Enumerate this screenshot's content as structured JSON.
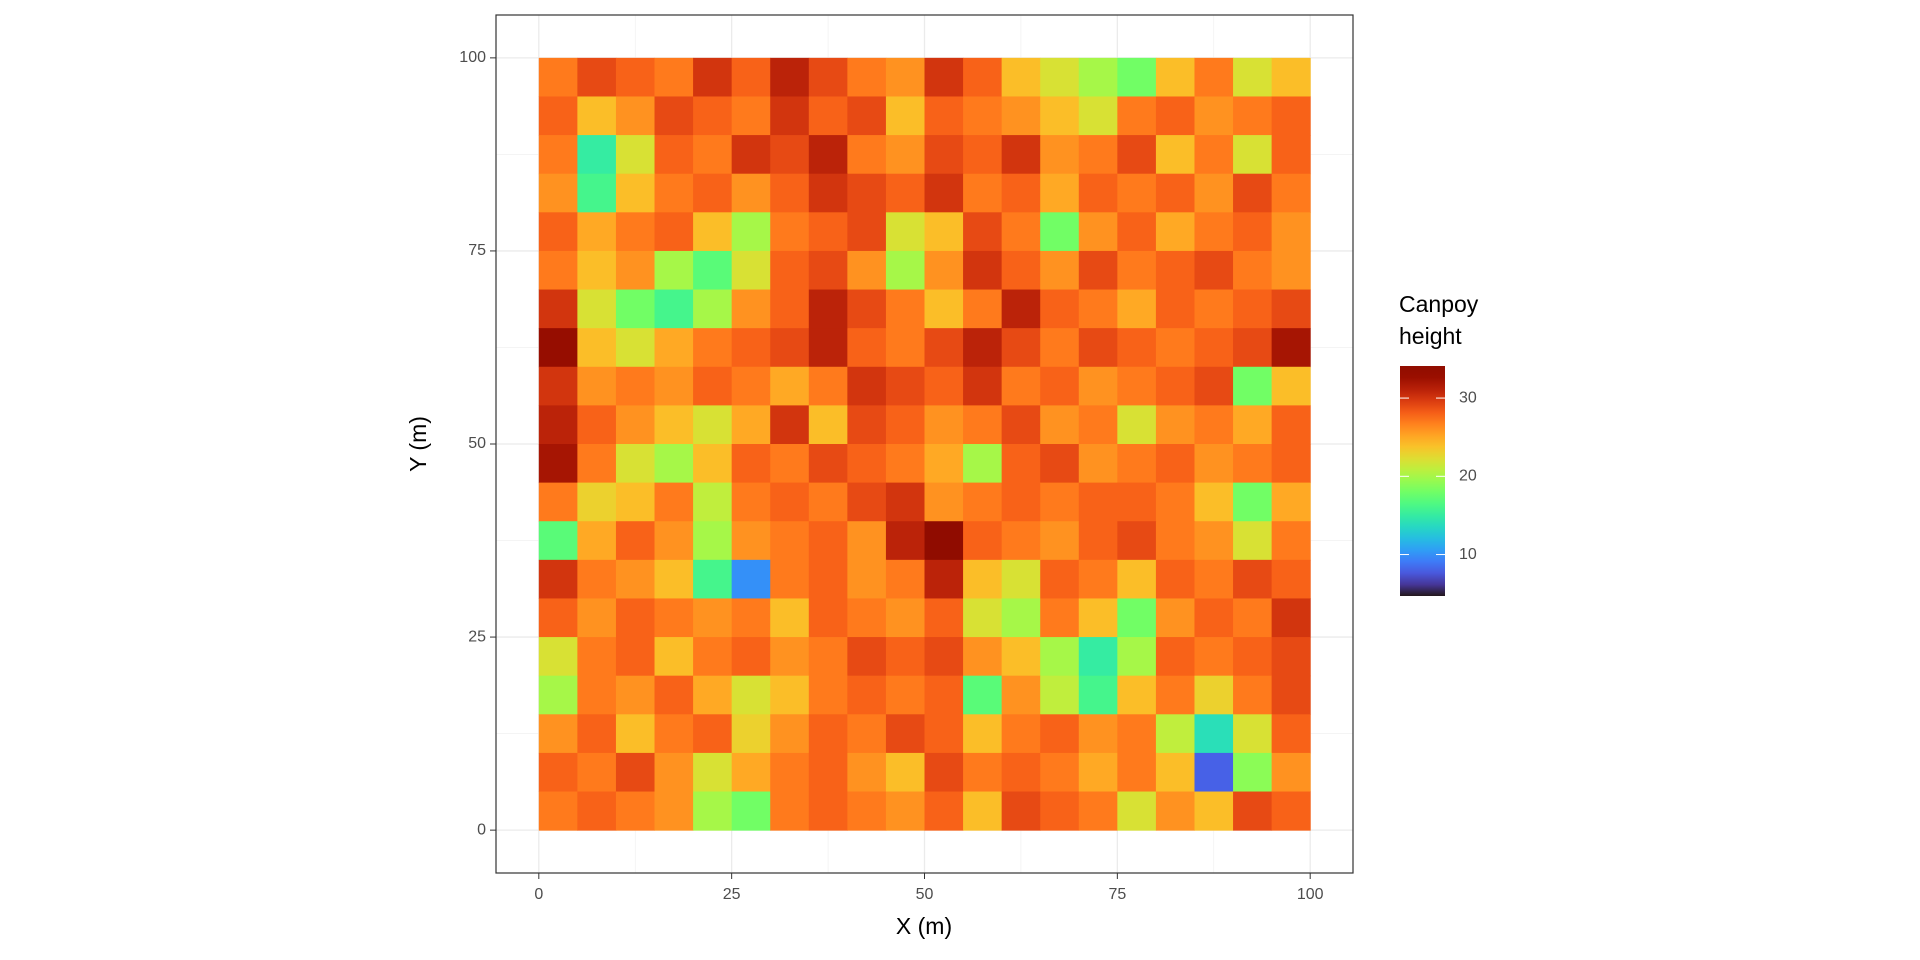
{
  "chart_data": {
    "type": "heatmap",
    "x_label": "X (m)",
    "y_label": "Y (m)",
    "legend_title": "Canpoy\nheight",
    "colormap": "turbo",
    "zlim": [
      4.7,
      34.1
    ],
    "legend_ticks": [
      10,
      20,
      30
    ],
    "xlim": [
      -5.55,
      105.55
    ],
    "ylim": [
      -5.55,
      105.55
    ],
    "xticks": [
      0,
      25,
      50,
      75,
      100
    ],
    "yticks": [
      0,
      25,
      50,
      75,
      100
    ],
    "grid": true,
    "x": [
      2.5,
      7.5,
      12.5,
      17.5,
      22.5,
      27.5,
      32.5,
      37.5,
      42.5,
      47.5,
      52.5,
      57.5,
      62.5,
      67.5,
      72.5,
      77.5,
      82.5,
      87.5,
      92.5,
      97.5
    ],
    "y": [
      97.5,
      92.5,
      87.5,
      82.5,
      77.5,
      72.5,
      67.5,
      62.5,
      57.5,
      52.5,
      47.5,
      42.5,
      37.5,
      32.5,
      27.5,
      22.5,
      17.5,
      12.5,
      7.5,
      2.5
    ],
    "z": [
      [
        27,
        29,
        28,
        27,
        30,
        28,
        31,
        29,
        27,
        26,
        30,
        28,
        24,
        22,
        20,
        18,
        24,
        27,
        22,
        24
      ],
      [
        28,
        24,
        26,
        29,
        28,
        27,
        30,
        28,
        29,
        24,
        28,
        27,
        26,
        24,
        22,
        27,
        28,
        26,
        27,
        28
      ],
      [
        27,
        15,
        22,
        28,
        27,
        30,
        29,
        31,
        27,
        26,
        29,
        28,
        30,
        26,
        27,
        29,
        24,
        27,
        22,
        28
      ],
      [
        26,
        16,
        24,
        27,
        28,
        26,
        28,
        30,
        29,
        28,
        30,
        27,
        28,
        25,
        28,
        27,
        28,
        26,
        29,
        27
      ],
      [
        28,
        25,
        27,
        28,
        24,
        20,
        27,
        28,
        29,
        22,
        24,
        29,
        27,
        18,
        26,
        28,
        25,
        27,
        28,
        26
      ],
      [
        27,
        24,
        26,
        20,
        17,
        22,
        28,
        29,
        26,
        20,
        26,
        30,
        28,
        26,
        29,
        27,
        28,
        29,
        27,
        26
      ],
      [
        30,
        22,
        18,
        16,
        20,
        26,
        28,
        31,
        29,
        27,
        24,
        27,
        31,
        28,
        27,
        25,
        28,
        27,
        28,
        29
      ],
      [
        33,
        24,
        22,
        25,
        27,
        28,
        29,
        31,
        28,
        27,
        29,
        31,
        29,
        27,
        29,
        28,
        27,
        28,
        29,
        32
      ],
      [
        30,
        26,
        27,
        26,
        28,
        27,
        25,
        27,
        30,
        29,
        28,
        30,
        27,
        28,
        26,
        27,
        28,
        29,
        18,
        24
      ],
      [
        31,
        28,
        26,
        24,
        22,
        25,
        30,
        24,
        29,
        28,
        26,
        27,
        29,
        26,
        27,
        22,
        26,
        27,
        25,
        28
      ],
      [
        32,
        27,
        22,
        20,
        24,
        28,
        27,
        29,
        28,
        27,
        25,
        20,
        28,
        29,
        26,
        27,
        28,
        26,
        27,
        28
      ],
      [
        27,
        23,
        24,
        27,
        21,
        27,
        28,
        27,
        29,
        30,
        26,
        27,
        28,
        27,
        28,
        28,
        27,
        24,
        18,
        25
      ],
      [
        17,
        25,
        28,
        26,
        20,
        26,
        27,
        28,
        26,
        31,
        34,
        28,
        27,
        26,
        28,
        29,
        27,
        26,
        22,
        27
      ],
      [
        30,
        27,
        26,
        24,
        16,
        10,
        27,
        28,
        26,
        27,
        31,
        24,
        22,
        28,
        27,
        24,
        28,
        27,
        29,
        28
      ],
      [
        28,
        26,
        28,
        27,
        26,
        27,
        24,
        28,
        27,
        26,
        28,
        22,
        20,
        27,
        24,
        18,
        26,
        28,
        27,
        30
      ],
      [
        22,
        27,
        28,
        24,
        27,
        28,
        26,
        27,
        29,
        28,
        29,
        26,
        24,
        20,
        15,
        20,
        28,
        27,
        28,
        29
      ],
      [
        20,
        27,
        26,
        28,
        25,
        22,
        24,
        27,
        28,
        27,
        28,
        17,
        26,
        21,
        16,
        24,
        27,
        23,
        27,
        29
      ],
      [
        26,
        28,
        24,
        27,
        28,
        23,
        26,
        28,
        27,
        29,
        28,
        24,
        27,
        28,
        26,
        27,
        21,
        14,
        22,
        28
      ],
      [
        28,
        27,
        29,
        26,
        22,
        25,
        27,
        28,
        26,
        24,
        29,
        27,
        28,
        27,
        25,
        27,
        24,
        8,
        19,
        26
      ],
      [
        27,
        28,
        27,
        26,
        20,
        18,
        27,
        28,
        27,
        26,
        28,
        24,
        29,
        28,
        27,
        22,
        26,
        24,
        29,
        28
      ]
    ]
  }
}
